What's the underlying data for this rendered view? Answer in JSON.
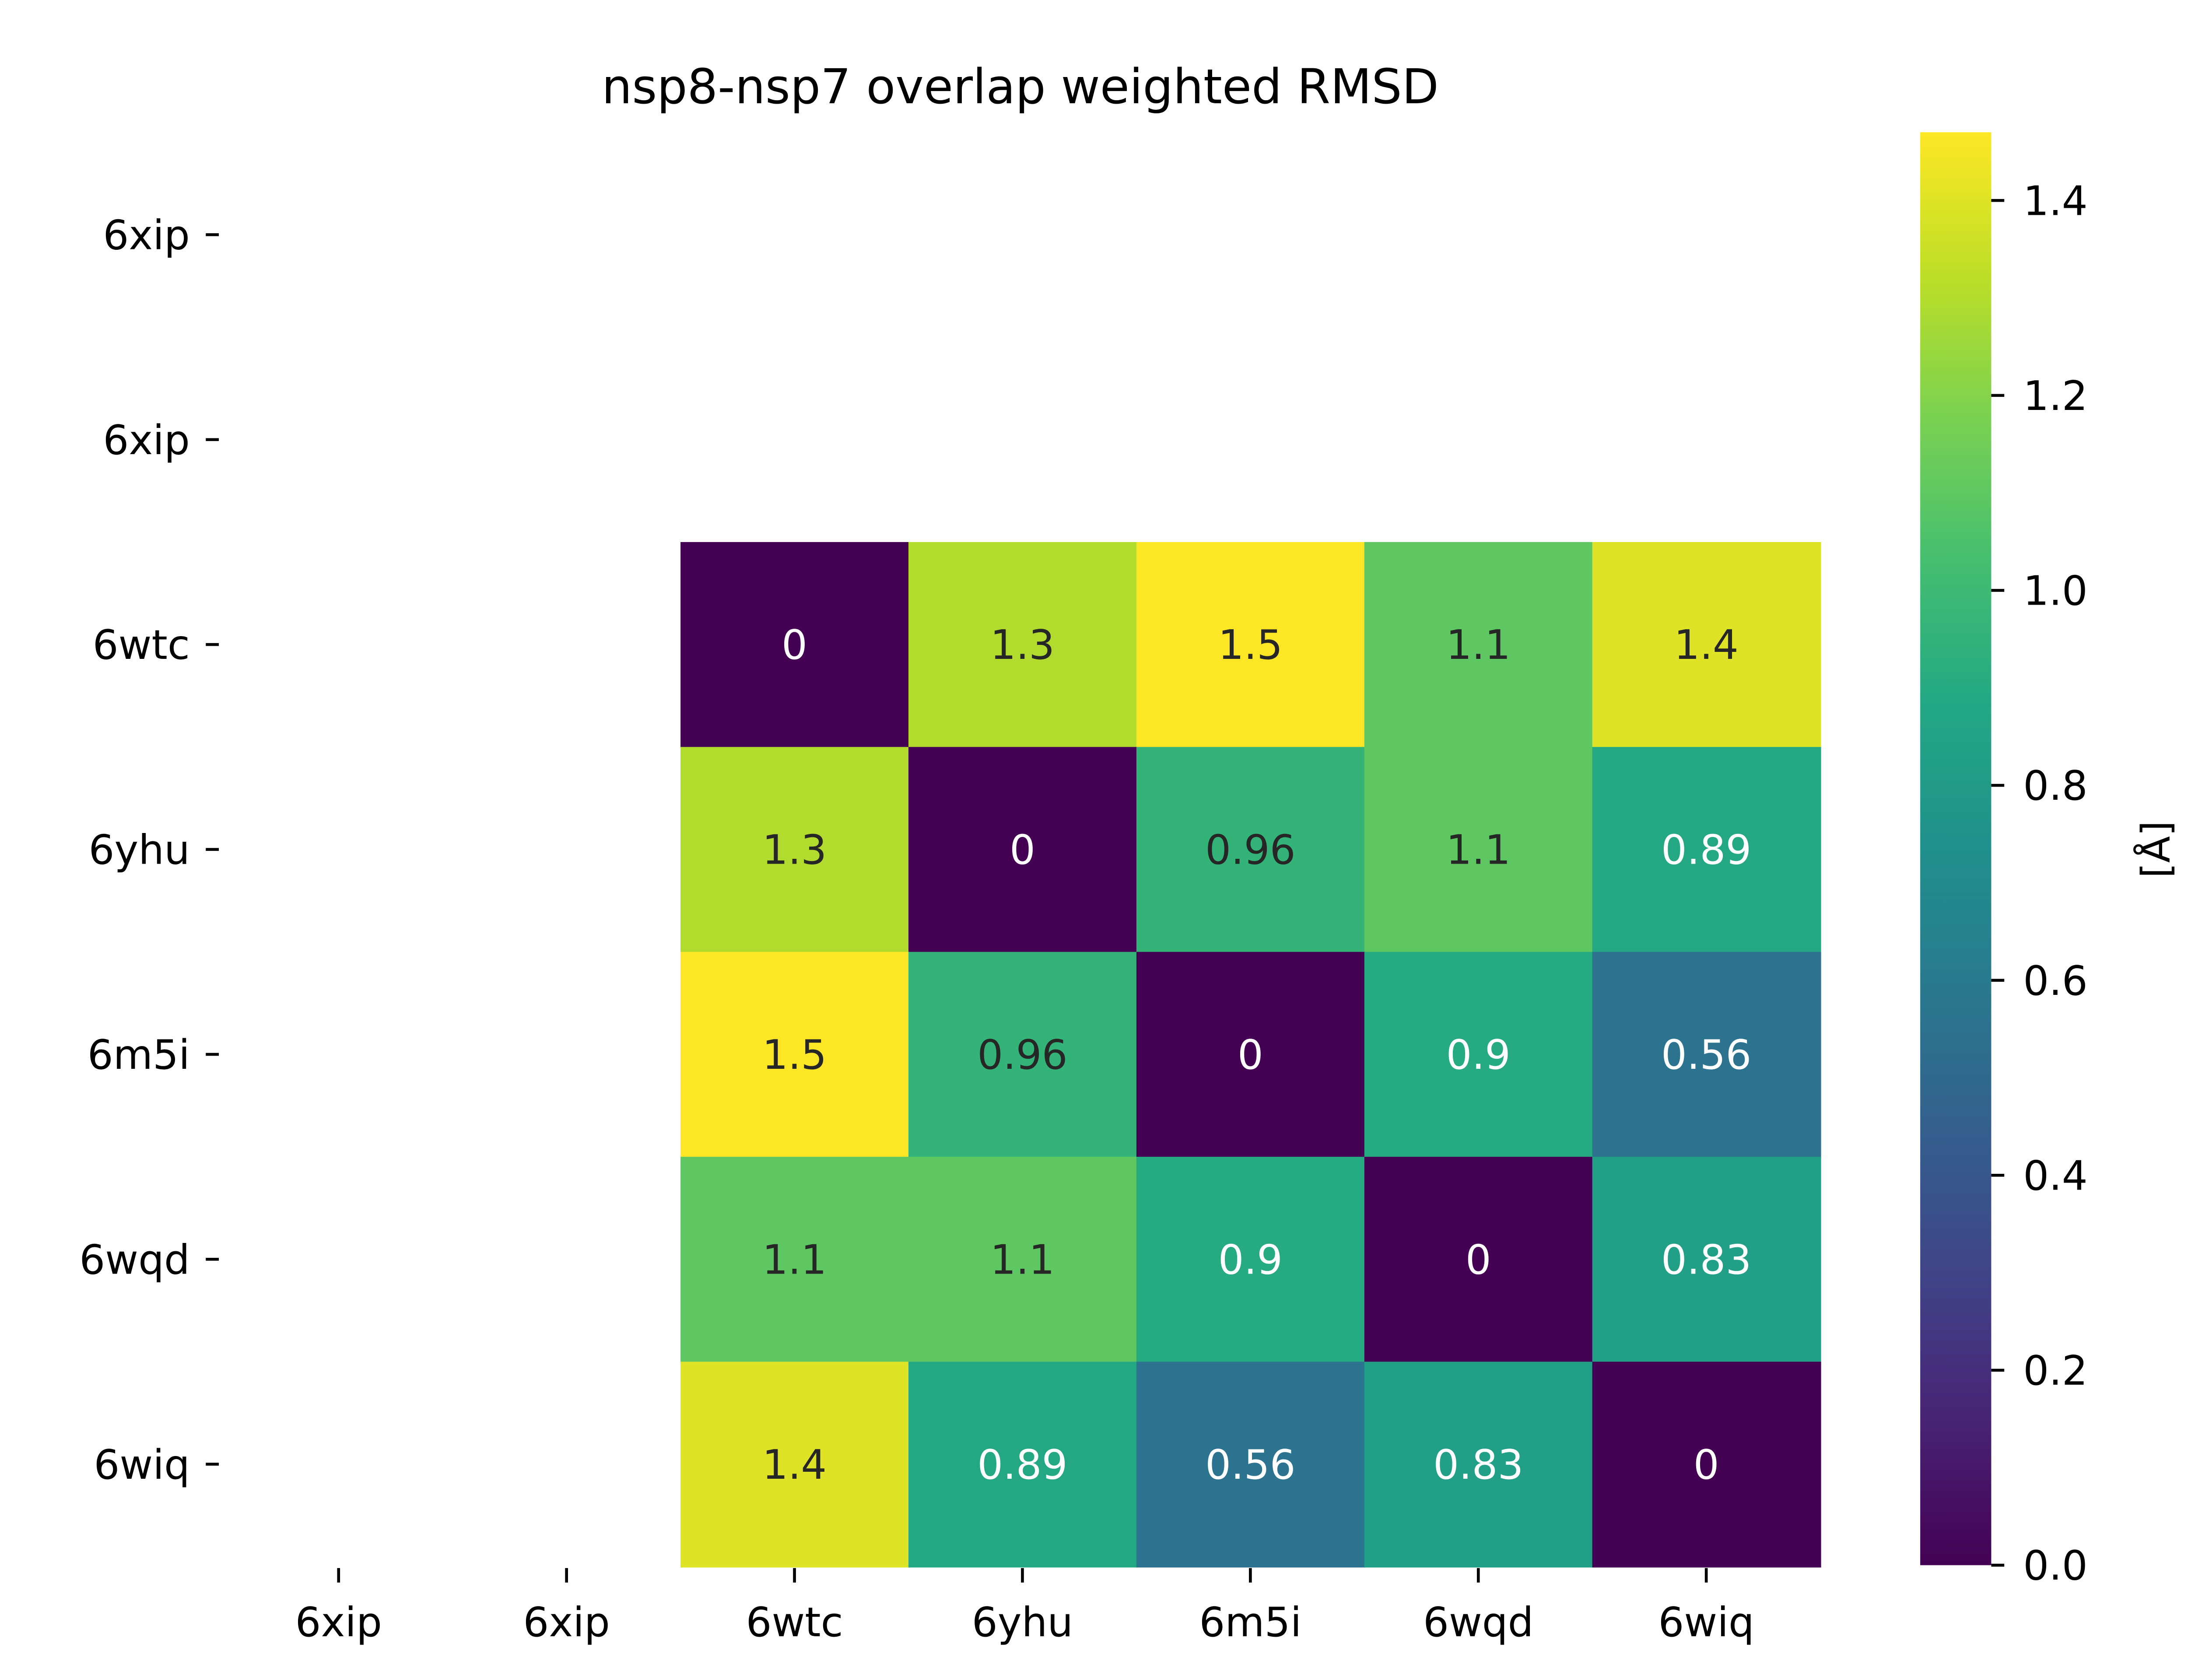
{
  "chart_data": {
    "type": "heatmap",
    "title": "nsp8-nsp7 overlap weighted RMSD",
    "x_categories": [
      "6xip",
      "6xip",
      "6wtc",
      "6yhu",
      "6m5i",
      "6wqd",
      "6wiq"
    ],
    "y_categories": [
      "6xip",
      "6xip",
      "6wtc",
      "6yhu",
      "6m5i",
      "6wqd",
      "6wiq"
    ],
    "values": [
      [
        null,
        null,
        null,
        null,
        null,
        null,
        null
      ],
      [
        null,
        null,
        null,
        null,
        null,
        null,
        null
      ],
      [
        null,
        null,
        0,
        1.3,
        1.5,
        1.1,
        1.4
      ],
      [
        null,
        null,
        1.3,
        0,
        0.96,
        1.1,
        0.89
      ],
      [
        null,
        null,
        1.5,
        0.96,
        0,
        0.9,
        0.56
      ],
      [
        null,
        null,
        1.1,
        1.1,
        0.9,
        0,
        0.83
      ],
      [
        null,
        null,
        1.4,
        0.89,
        0.56,
        0.83,
        0
      ]
    ],
    "value_labels": [
      [
        null,
        null,
        null,
        null,
        null,
        null,
        null
      ],
      [
        null,
        null,
        null,
        null,
        null,
        null,
        null
      ],
      [
        null,
        null,
        "0",
        "1.3",
        "1.5",
        "1.1",
        "1.4"
      ],
      [
        null,
        null,
        "1.3",
        "0",
        "0.96",
        "1.1",
        "0.89"
      ],
      [
        null,
        null,
        "1.5",
        "0.96",
        "0",
        "0.9",
        "0.56"
      ],
      [
        null,
        null,
        "1.1",
        "1.1",
        "0.9",
        "0",
        "0.83"
      ],
      [
        null,
        null,
        "1.4",
        "0.89",
        "0.56",
        "0.83",
        "0"
      ]
    ],
    "colorbar": {
      "label": "[Å]",
      "vmin": 0,
      "vmax": 1.47,
      "ticks": [
        0.0,
        0.2,
        0.4,
        0.6,
        0.8,
        1.0,
        1.2,
        1.4
      ],
      "tick_labels": [
        "0.0",
        "0.2",
        "0.4",
        "0.6",
        "0.8",
        "1.0",
        "1.2",
        "1.4"
      ],
      "colormap": "viridis"
    },
    "colors": {
      "text_dark": "#262626",
      "text_light": "#ffffff"
    }
  }
}
